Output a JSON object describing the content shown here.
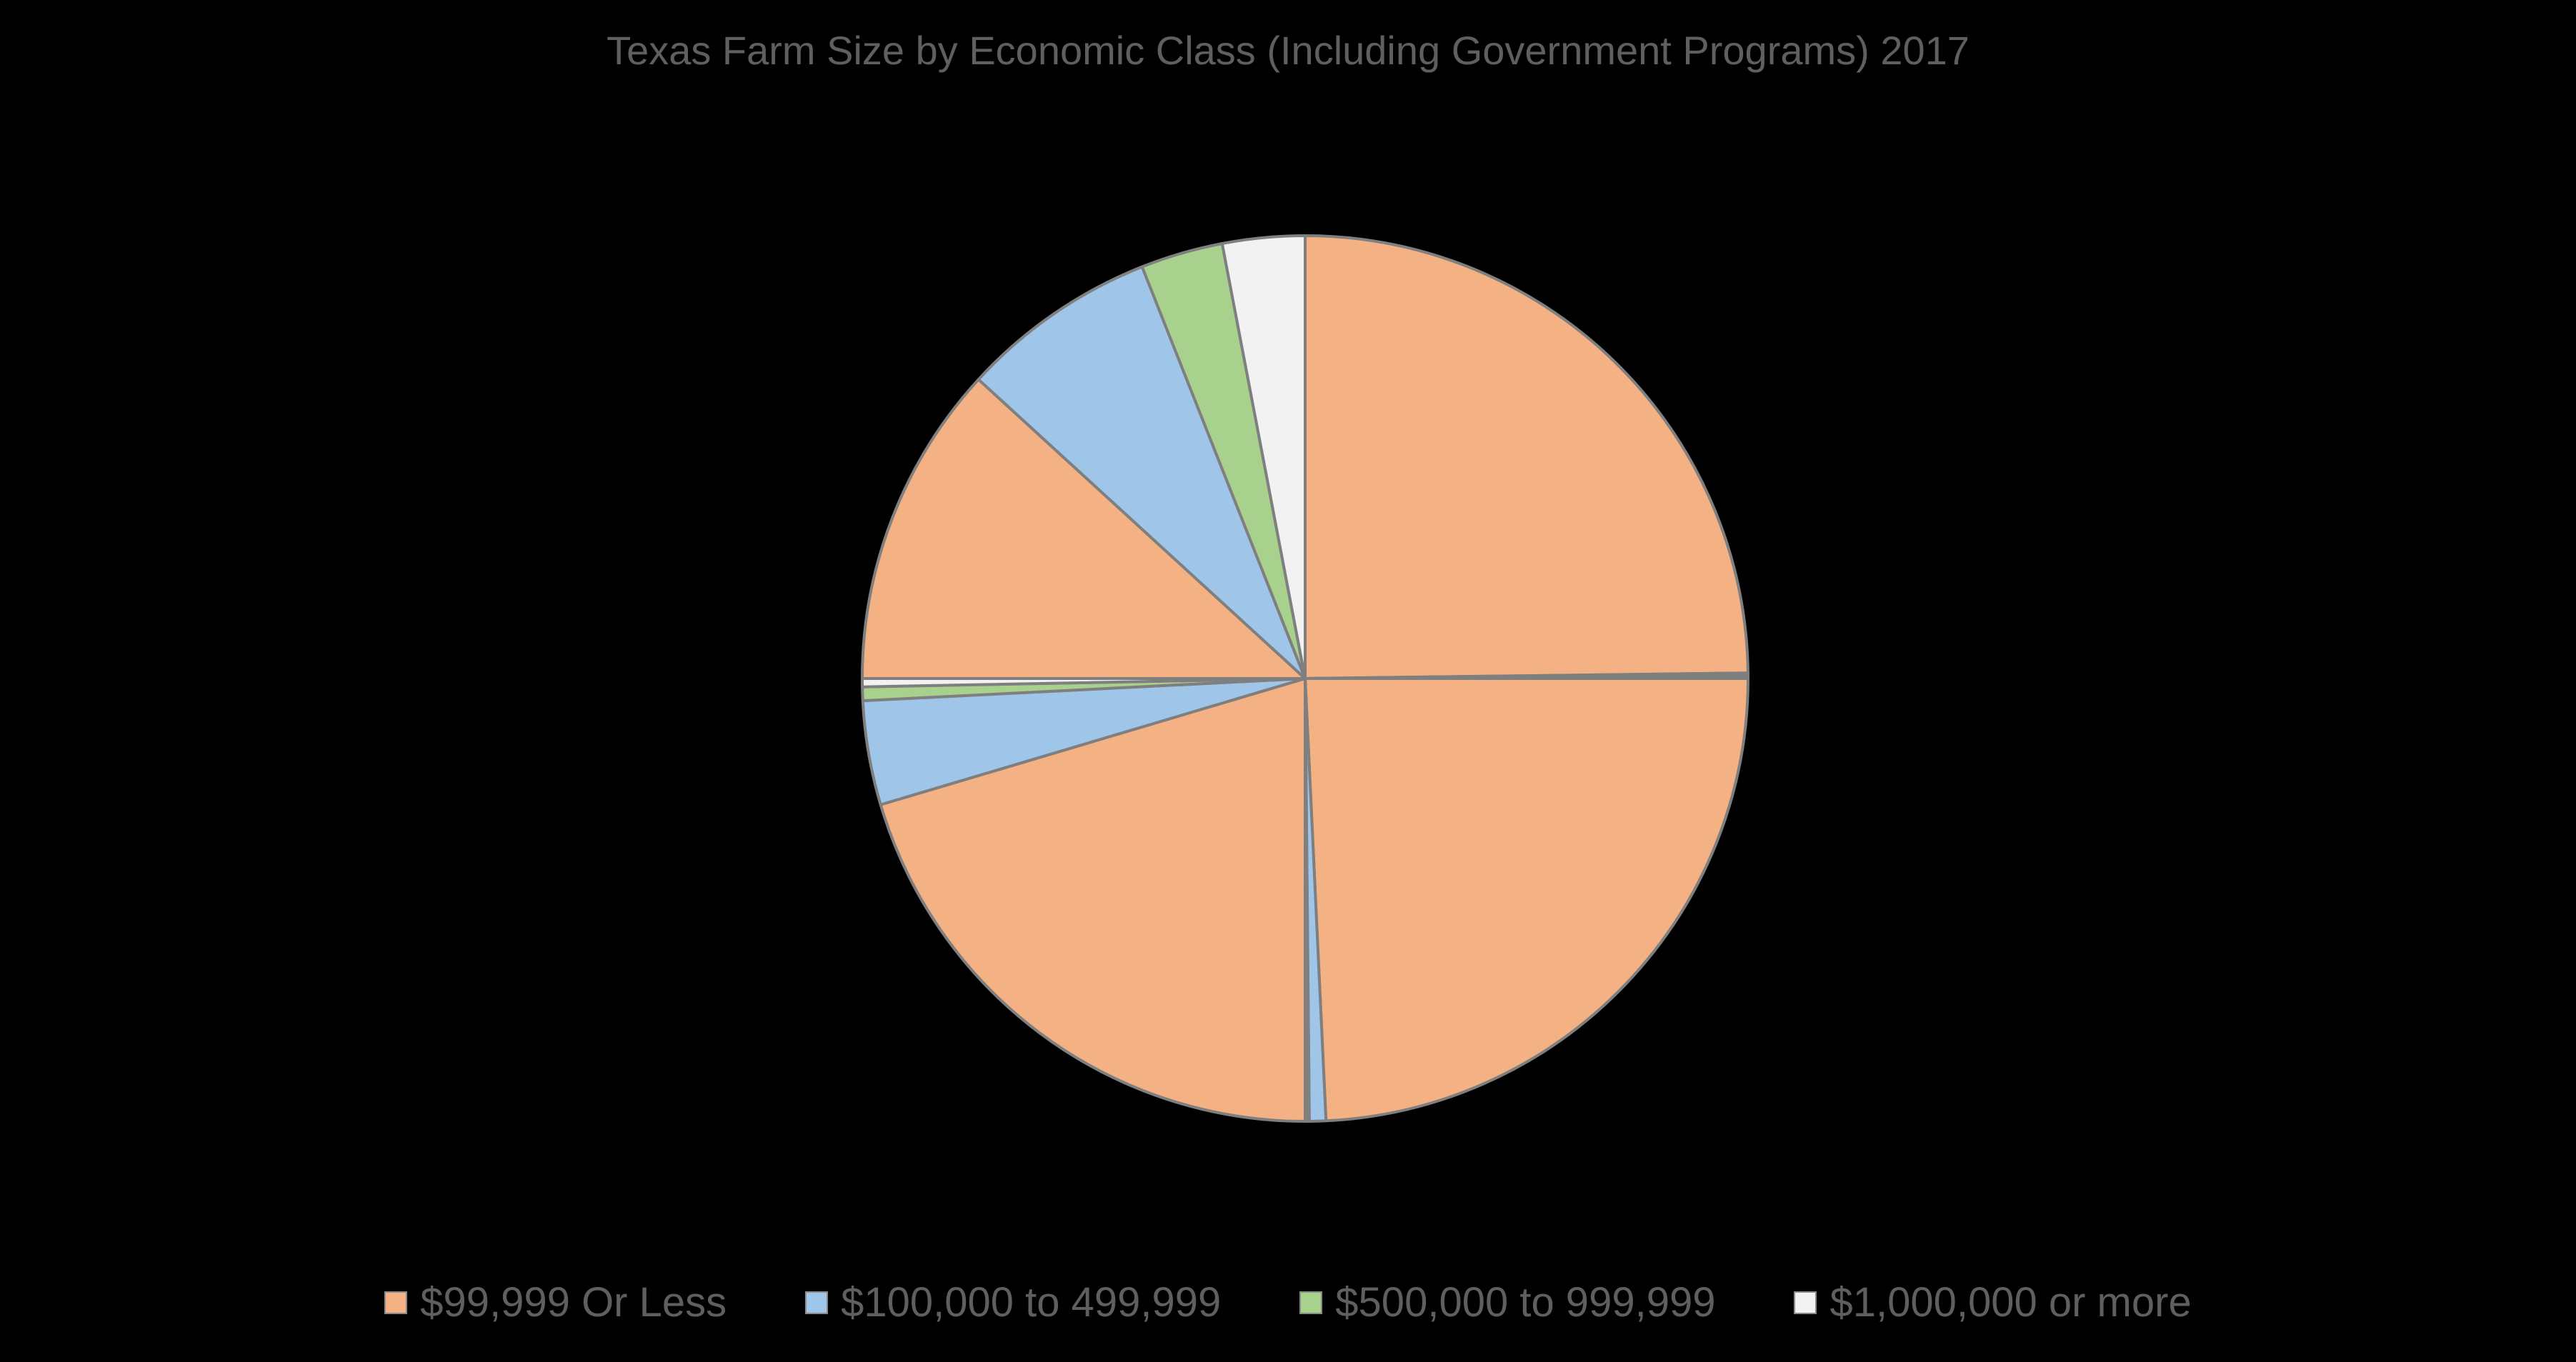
{
  "chart_data": {
    "type": "pie",
    "title": "Texas Farm Size by Economic Class (Including Government Programs) 2017",
    "legend_position": "bottom",
    "series": [
      {
        "name": "$99,999 Or Less",
        "color": "#f4b183"
      },
      {
        "name": "$100,000 to 499,999",
        "color": "#9fc5e8"
      },
      {
        "name": "$500,000 to 999,999",
        "color": "#a9d18e"
      },
      {
        "name": "$1,000,000 or more",
        "color": "#f2f2f2"
      }
    ],
    "slices": [
      {
        "series": "$99,999 Or Less",
        "value": 24.8
      },
      {
        "series": "$100,000 to 499,999",
        "value": 0.1
      },
      {
        "series": "$500,000 to 999,999",
        "value": 0.05
      },
      {
        "series": "$1,000,000 or more",
        "value": 0.05
      },
      {
        "series": "$99,999 Or Less",
        "value": 24.25
      },
      {
        "series": "$100,000 to 499,999",
        "value": 0.6
      },
      {
        "series": "$500,000 to 999,999",
        "value": 0.05
      },
      {
        "series": "$1,000,000 or more",
        "value": 0.1
      },
      {
        "series": "$99,999 Or Less",
        "value": 20.4
      },
      {
        "series": "$100,000 to 499,999",
        "value": 3.8
      },
      {
        "series": "$500,000 to 999,999",
        "value": 0.5
      },
      {
        "series": "$1,000,000 or more",
        "value": 0.3
      },
      {
        "series": "$99,999 Or Less",
        "value": 11.8
      },
      {
        "series": "$100,000 to 499,999",
        "value": 7.2
      },
      {
        "series": "$500,000 to 999,999",
        "value": 3.0
      },
      {
        "series": "$1,000,000 or more",
        "value": 3.0
      }
    ]
  }
}
